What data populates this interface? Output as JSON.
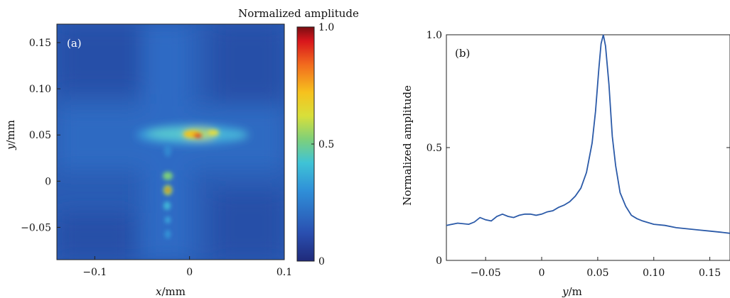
{
  "panel_a": {
    "tag": "(a)",
    "x_label_var": "x",
    "x_label_unit": "/mm",
    "y_label_var": "y",
    "y_label_unit": "/mm",
    "x_ticks": [
      "−0.1",
      "0",
      "0.1"
    ],
    "y_ticks": [
      "0.15",
      "0.10",
      "0.05",
      "0",
      "−0.05"
    ],
    "colorbar_title": "Normalized amplitude",
    "colorbar_ticks": [
      "1.0",
      "0.5",
      "0"
    ]
  },
  "panel_b": {
    "tag": "(b)",
    "x_label_var": "y",
    "x_label_unit": "/m",
    "y_label": "Normalized amplitude",
    "x_ticks": [
      "−0.05",
      "0",
      "0.05",
      "0.10",
      "0.15"
    ],
    "y_ticks": [
      "1.0",
      "0.5",
      "0"
    ],
    "line_color": "#2b5aa8"
  },
  "chart_data": [
    {
      "type": "heatmap",
      "title": "",
      "xlabel": "x/mm",
      "ylabel": "y/mm",
      "xlim": [
        -0.14,
        0.1
      ],
      "ylim": [
        -0.085,
        0.17
      ],
      "colorbar_label": "Normalized amplitude",
      "colorbar_range": [
        0,
        1.0
      ],
      "colormap": "jet",
      "background_value": 0.18,
      "features": [
        {
          "description": "horizontal band",
          "x_range": [
            -0.035,
            0.06
          ],
          "y": 0.052,
          "peak_value": 1.0,
          "peak_x": 0.01
        },
        {
          "description": "vertical dotted column",
          "x": -0.02,
          "y_range": [
            -0.05,
            0.01
          ],
          "peak_value": 0.9,
          "peak_y": -0.007
        }
      ]
    },
    {
      "type": "line",
      "title": "",
      "xlabel": "y/m",
      "ylabel": "Normalized amplitude",
      "xlim": [
        -0.085,
        0.168
      ],
      "ylim": [
        0,
        1.0
      ],
      "grid": false,
      "series": [
        {
          "x": [
            -0.085,
            -0.075,
            -0.065,
            -0.06,
            -0.055,
            -0.05,
            -0.045,
            -0.04,
            -0.035,
            -0.03,
            -0.025,
            -0.02,
            -0.015,
            -0.01,
            -0.005,
            0.0,
            0.005,
            0.01,
            0.015,
            0.02,
            0.025,
            0.03,
            0.035,
            0.04,
            0.045,
            0.048,
            0.051,
            0.053,
            0.055,
            0.057,
            0.06,
            0.063,
            0.066,
            0.07,
            0.075,
            0.08,
            0.085,
            0.09,
            0.1,
            0.11,
            0.12,
            0.13,
            0.14,
            0.15,
            0.16,
            0.168
          ],
          "y": [
            0.155,
            0.165,
            0.16,
            0.17,
            0.19,
            0.18,
            0.175,
            0.195,
            0.205,
            0.195,
            0.19,
            0.2,
            0.205,
            0.205,
            0.2,
            0.205,
            0.215,
            0.22,
            0.235,
            0.245,
            0.26,
            0.285,
            0.32,
            0.39,
            0.52,
            0.66,
            0.85,
            0.96,
            1.0,
            0.95,
            0.78,
            0.55,
            0.42,
            0.3,
            0.24,
            0.2,
            0.185,
            0.175,
            0.16,
            0.155,
            0.145,
            0.14,
            0.135,
            0.13,
            0.125,
            0.12
          ]
        }
      ]
    }
  ]
}
